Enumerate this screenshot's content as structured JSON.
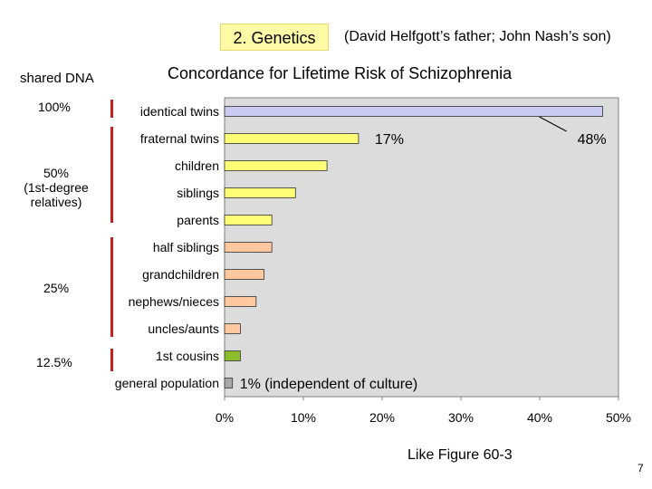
{
  "header": {
    "section_title": "2.  Genetics",
    "note": "(David Helfgott’s father; John Nash’s son)"
  },
  "dna_labels": {
    "heading": "shared DNA",
    "pct100": "100%",
    "pct50_line1": "50%",
    "pct50_line2": "(1st-degree",
    "pct50_line3": "relatives)",
    "pct25": "25%",
    "pct12": "12.5%"
  },
  "chart_data": {
    "type": "bar",
    "orientation": "horizontal",
    "title": "Concordance for Lifetime Risk of Schizophrenia",
    "categories": [
      "identical twins",
      "fraternal twins",
      "children",
      "siblings",
      "parents",
      "half siblings",
      "grandchildren",
      "nephews/nieces",
      "uncles/aunts",
      "1st cousins",
      "general population"
    ],
    "values": [
      48,
      17,
      13,
      9,
      6,
      6,
      5,
      4,
      2,
      2,
      1
    ],
    "bar_colors": [
      "#c9c9f2",
      "#ffff77",
      "#ffff77",
      "#ffff77",
      "#ffff77",
      "#ffc89e",
      "#ffc89e",
      "#ffc89e",
      "#ffc89e",
      "#8cbd2a",
      "#a8a8a8"
    ],
    "xlim": [
      0,
      50
    ],
    "xticks": [
      "0%",
      "10%",
      "20%",
      "30%",
      "40%",
      "50%"
    ],
    "annotations": {
      "identical": "48%",
      "fraternal": "17%",
      "general": "1% (independent of culture)"
    }
  },
  "footer": {
    "reference": "Like Figure 60-3",
    "page_number": "7"
  }
}
